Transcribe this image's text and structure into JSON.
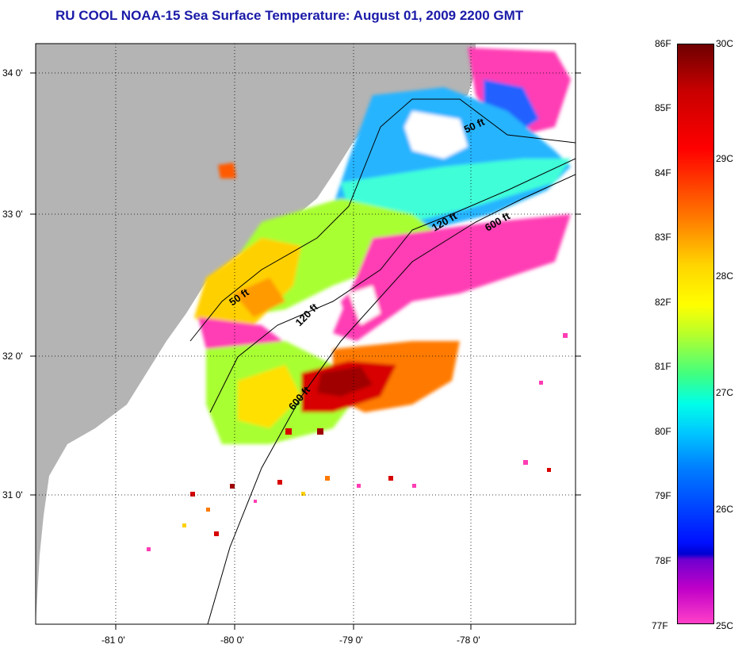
{
  "title": "RU COOL  NOAA-15  Sea Surface Temperature:  August 01, 2009 2200 GMT",
  "map": {
    "lat_labels": [
      "34 0'",
      "33 0'",
      "32 0'",
      "31 0'"
    ],
    "lon_labels": [
      "-81 0'",
      "-80 0'",
      "-79 0'",
      "-78 0'"
    ],
    "contour_labels": [
      "50 ft",
      "120 ft",
      "600 ft",
      "50 ft",
      "120 ft",
      "600 ft"
    ],
    "colors": {
      "land": "#b4b4b4",
      "ocean_missing": "#ffffff",
      "frame": "#000000"
    }
  },
  "colorbar": {
    "f_labels": [
      "86F",
      "85F",
      "84F",
      "83F",
      "82F",
      "81F",
      "80F",
      "79F",
      "78F",
      "77F"
    ],
    "c_labels": [
      "30C",
      "29C",
      "28C",
      "27C",
      "26C",
      "25C"
    ]
  }
}
